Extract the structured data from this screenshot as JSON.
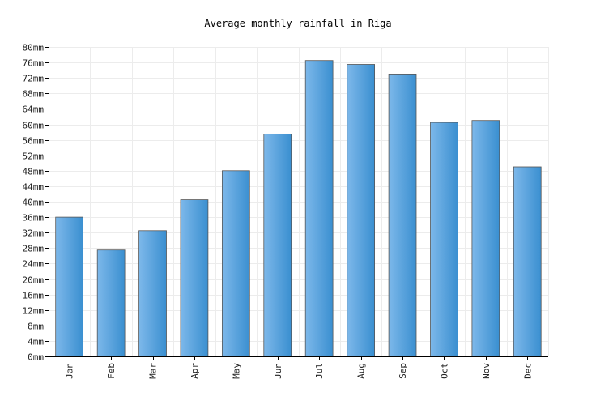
{
  "chart_data": {
    "type": "bar",
    "title": "Average monthly rainfall in Riga",
    "categories": [
      "Jan",
      "Feb",
      "Mar",
      "Apr",
      "May",
      "Jun",
      "Jul",
      "Aug",
      "Sep",
      "Oct",
      "Nov",
      "Dec"
    ],
    "values": [
      36,
      27.5,
      32.5,
      40.5,
      48,
      57.5,
      76.5,
      75.5,
      73,
      60.5,
      61,
      49
    ],
    "unit_suffix": "mm",
    "ylim": [
      0,
      80
    ],
    "y_tick_step": 4,
    "grid": true,
    "colors": {
      "bar_light": "#7db8ea",
      "bar_dark": "#3a8fd0",
      "bar_stroke": "#555555",
      "grid": "#ececec",
      "axis": "#000000"
    }
  }
}
